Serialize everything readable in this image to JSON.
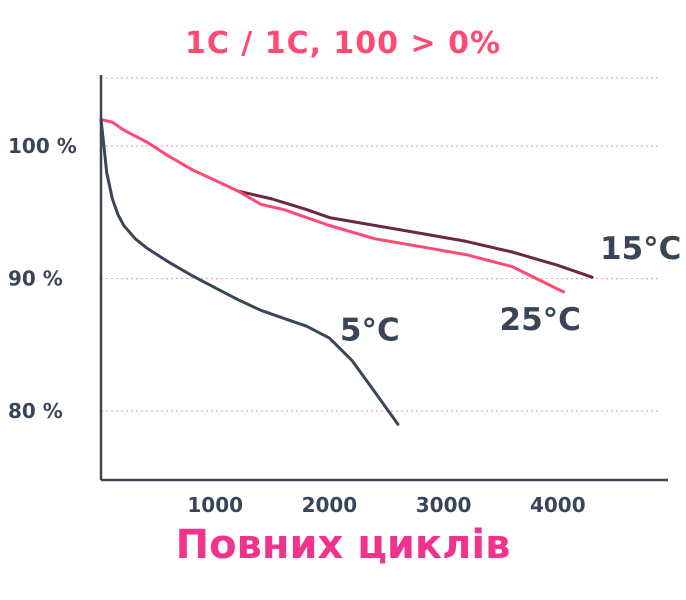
{
  "chart_data": {
    "type": "line",
    "title": "1C / 1C, 100 > 0%",
    "xlabel": "Повних циклів",
    "ylabel": "",
    "xlim": [
      0,
      4900
    ],
    "ylim": [
      75,
      105
    ],
    "x_ticks": [
      1000,
      2000,
      3000,
      4000
    ],
    "x_tick_labels": [
      "1000",
      "2000",
      "3000",
      "4000"
    ],
    "y_ticks": [
      80,
      90,
      100
    ],
    "y_tick_labels": [
      "80 %",
      "90 %",
      "100 %"
    ],
    "grid": "horizontal dotted",
    "series": [
      {
        "name": "15°C",
        "color": "#6b2a3c",
        "x": [
          1200,
          1500,
          1800,
          2000,
          2400,
          2800,
          3200,
          3600,
          4000,
          4300
        ],
        "y": [
          96.6,
          96.0,
          95.2,
          94.6,
          94.0,
          93.4,
          92.8,
          92.0,
          91.0,
          90.1
        ]
      },
      {
        "name": "25°C",
        "color": "#ff4a73",
        "x": [
          0,
          100,
          200,
          400,
          600,
          800,
          1000,
          1200,
          1400,
          1600,
          2000,
          2400,
          2800,
          3200,
          3600,
          4000,
          4050
        ],
        "y": [
          102.0,
          101.8,
          101.2,
          100.3,
          99.2,
          98.2,
          97.4,
          96.6,
          95.6,
          95.2,
          94.0,
          93.0,
          92.4,
          91.8,
          90.9,
          89.2,
          89.0
        ]
      },
      {
        "name": "5°C",
        "color": "#3a4658",
        "x": [
          0,
          25,
          50,
          100,
          150,
          200,
          300,
          400,
          600,
          800,
          1000,
          1200,
          1400,
          1600,
          1800,
          2000,
          2200,
          2400,
          2550,
          2600
        ],
        "y": [
          102.0,
          100.0,
          98.0,
          96.0,
          94.8,
          94.0,
          93.0,
          92.3,
          91.2,
          90.2,
          89.3,
          88.4,
          87.6,
          87.0,
          86.4,
          85.5,
          83.8,
          81.4,
          79.6,
          79.0
        ]
      }
    ]
  },
  "colors": {
    "title": "#ff4a73",
    "xlabel": "#f0338c",
    "axis": "#3a4658",
    "grid": "#f4a6b8",
    "tick_text": "#3a4658"
  }
}
